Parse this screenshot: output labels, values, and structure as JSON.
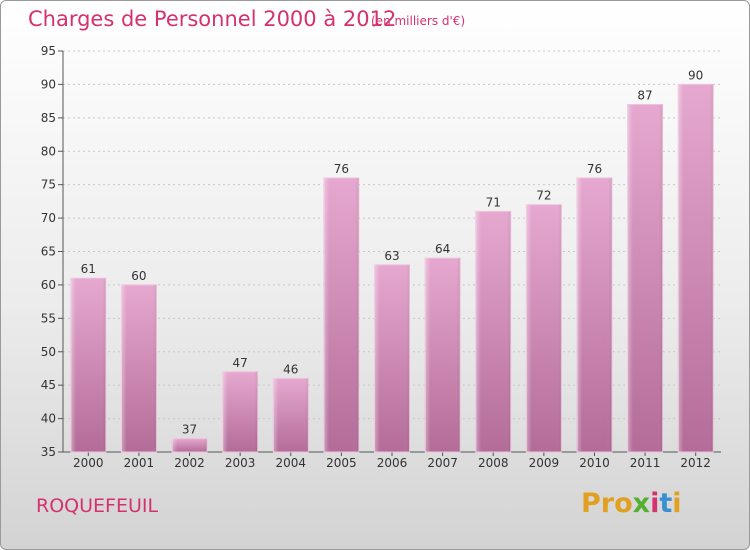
{
  "chart_data": {
    "type": "bar",
    "title": "Charges de Personnel 2000 à 2012",
    "subtitle": "(en milliers d'€)",
    "categories": [
      "2000",
      "2001",
      "2002",
      "2003",
      "2004",
      "2005",
      "2006",
      "2007",
      "2008",
      "2009",
      "2010",
      "2011",
      "2012"
    ],
    "values": [
      61,
      60,
      37,
      47,
      46,
      76,
      63,
      64,
      71,
      72,
      76,
      87,
      90
    ],
    "value_labels": [
      "61",
      "60",
      "37",
      "47",
      "46",
      "76",
      "63",
      "64",
      "71",
      "72",
      "76",
      "87",
      "90"
    ],
    "ylim": [
      35,
      95
    ],
    "yticks": [
      "35",
      "40",
      "45",
      "50",
      "55",
      "60",
      "65",
      "70",
      "75",
      "80",
      "85",
      "90",
      "95"
    ],
    "grid": "horizontal-dashed",
    "bar_color": "#e0a0c8"
  },
  "footer": {
    "commune": "ROQUEFEUIL",
    "logo": {
      "p1": "Pro",
      "p2": "x",
      "p3": "i",
      "p4": "t",
      "p5": "i"
    }
  }
}
